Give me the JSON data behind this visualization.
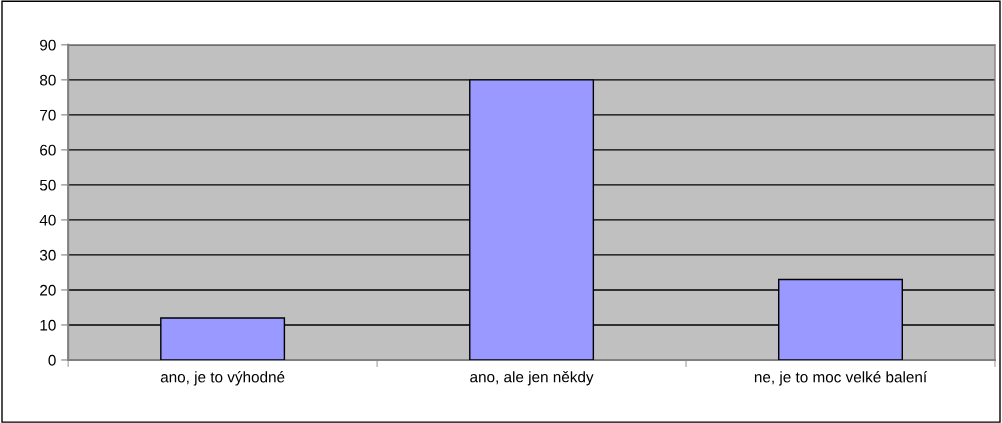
{
  "chart_data": {
    "type": "bar",
    "categories": [
      "ano, je to výhodné",
      "ano, ale jen někdy",
      "ne, je to moc velké balení"
    ],
    "values": [
      12,
      80,
      23
    ],
    "color": "#9999ff",
    "ylim": [
      0,
      90
    ],
    "yticks": [
      0,
      10,
      20,
      30,
      40,
      50,
      60,
      70,
      80,
      90
    ],
    "grid": "y",
    "legend": false
  }
}
